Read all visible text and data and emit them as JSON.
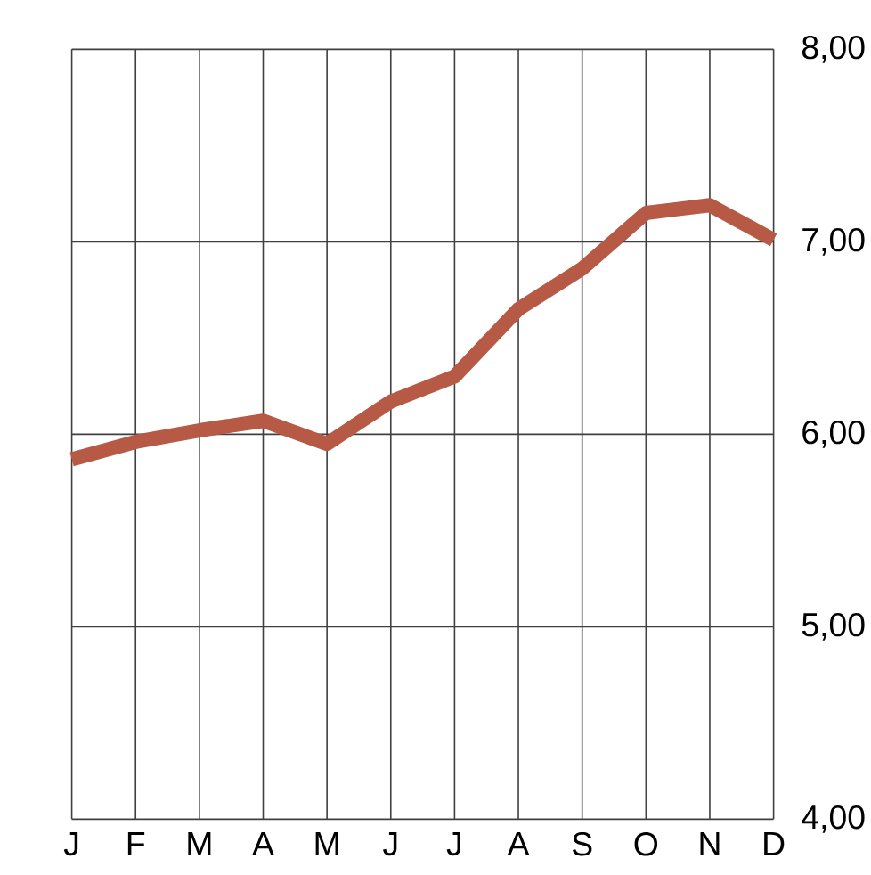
{
  "chart_data": {
    "type": "line",
    "categories": [
      "J",
      "F",
      "M",
      "A",
      "M",
      "J",
      "J",
      "A",
      "S",
      "O",
      "N",
      "D"
    ],
    "series": [
      {
        "color": "#b65a45",
        "values": [
          5.87,
          5.96,
          6.02,
          6.07,
          5.95,
          6.17,
          6.3,
          6.65,
          6.86,
          7.15,
          7.19,
          7.01
        ]
      }
    ],
    "ylim": [
      4,
      8
    ],
    "yticks": [
      {
        "value": 4,
        "label": "4,00"
      },
      {
        "value": 5,
        "label": "5,00"
      },
      {
        "value": 6,
        "label": "6,00"
      },
      {
        "value": 7,
        "label": "7,00"
      },
      {
        "value": 8,
        "label": "8,00"
      }
    ],
    "grid": true,
    "marker": "none",
    "line_style": "solid"
  }
}
